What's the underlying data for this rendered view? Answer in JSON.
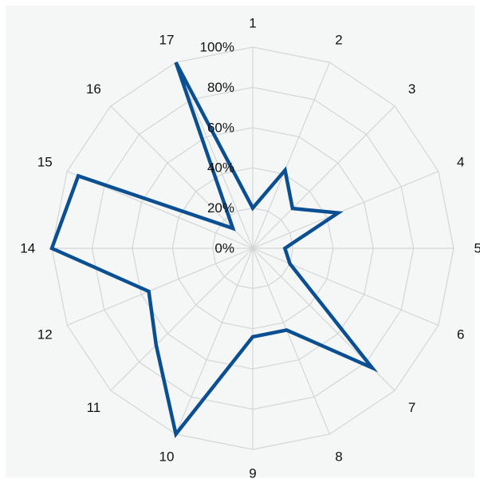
{
  "chart_data": {
    "type": "radar",
    "title": "",
    "categories": [
      "1",
      "2",
      "3",
      "4",
      "5",
      "6",
      "7",
      "8",
      "9",
      "10",
      "11",
      "12",
      "14",
      "15",
      "16",
      "17"
    ],
    "series": [
      {
        "values": [
          0.2,
          0.42,
          0.28,
          0.46,
          0.16,
          0.2,
          0.84,
          0.44,
          0.44,
          1.0,
          0.68,
          0.56,
          1.0,
          0.94,
          0.14,
          1.0
        ]
      }
    ],
    "radial_ticks": [
      "0%",
      "20%",
      "40%",
      "60%",
      "80%",
      "100%"
    ],
    "rlim": [
      0,
      1
    ],
    "grid": true,
    "legend": "none"
  },
  "colors": {
    "series": "#0b4f93",
    "grid": "#d3d6d6",
    "background": "#f5f7f7"
  }
}
